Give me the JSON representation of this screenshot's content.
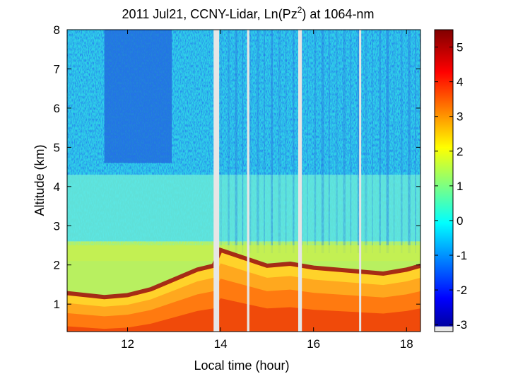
{
  "chart_data": {
    "type": "heatmap",
    "title": "2011 Jul21, CCNY-Lidar, Ln(Pz",
    "title_superscript": "2",
    "title_suffix": ") at 1064-nm",
    "xlabel": "Local time (hour)",
    "ylabel": "Altitude (km)",
    "xlim": [
      10.7,
      18.3
    ],
    "ylim": [
      0.3,
      8
    ],
    "xticks": [
      12,
      14,
      16,
      18
    ],
    "xtick_labels": [
      "12",
      "14",
      "16",
      "18"
    ],
    "yticks": [
      1,
      2,
      3,
      4,
      5,
      6,
      7,
      8
    ],
    "ytick_labels": [
      "1",
      "2",
      "3",
      "4",
      "5",
      "6",
      "7",
      "8"
    ],
    "colorbar": {
      "clim": [
        -3.2,
        5.5
      ],
      "ticks": [
        -3,
        -2,
        -1,
        0,
        1,
        2,
        3,
        4,
        5
      ],
      "tick_labels": [
        "-3",
        "-2",
        "-1",
        "0",
        "1",
        "2",
        "3",
        "4",
        "5"
      ],
      "colormap": "jet",
      "no_data_color": "#e6e6e6"
    },
    "data_gaps_hours": [
      [
        13.85,
        13.97
      ],
      [
        14.57,
        14.62
      ],
      [
        15.67,
        15.75
      ],
      [
        16.98,
        17.02
      ]
    ],
    "boundary_layer_height_km": {
      "time": [
        10.7,
        11.5,
        12.0,
        12.5,
        13.0,
        13.5,
        13.85,
        14.0,
        14.5,
        15.0,
        15.5,
        16.0,
        16.5,
        17.0,
        17.5,
        18.0,
        18.3
      ],
      "height": [
        1.2,
        1.1,
        1.15,
        1.3,
        1.55,
        1.8,
        1.9,
        2.3,
        2.1,
        1.9,
        1.95,
        1.85,
        1.8,
        1.75,
        1.7,
        1.8,
        1.9
      ]
    },
    "cloud_top_km_pre_noon_region": 4.6,
    "grid": false
  },
  "colors": {
    "background": "#ffffff",
    "no_data": "#e6e6e6"
  }
}
